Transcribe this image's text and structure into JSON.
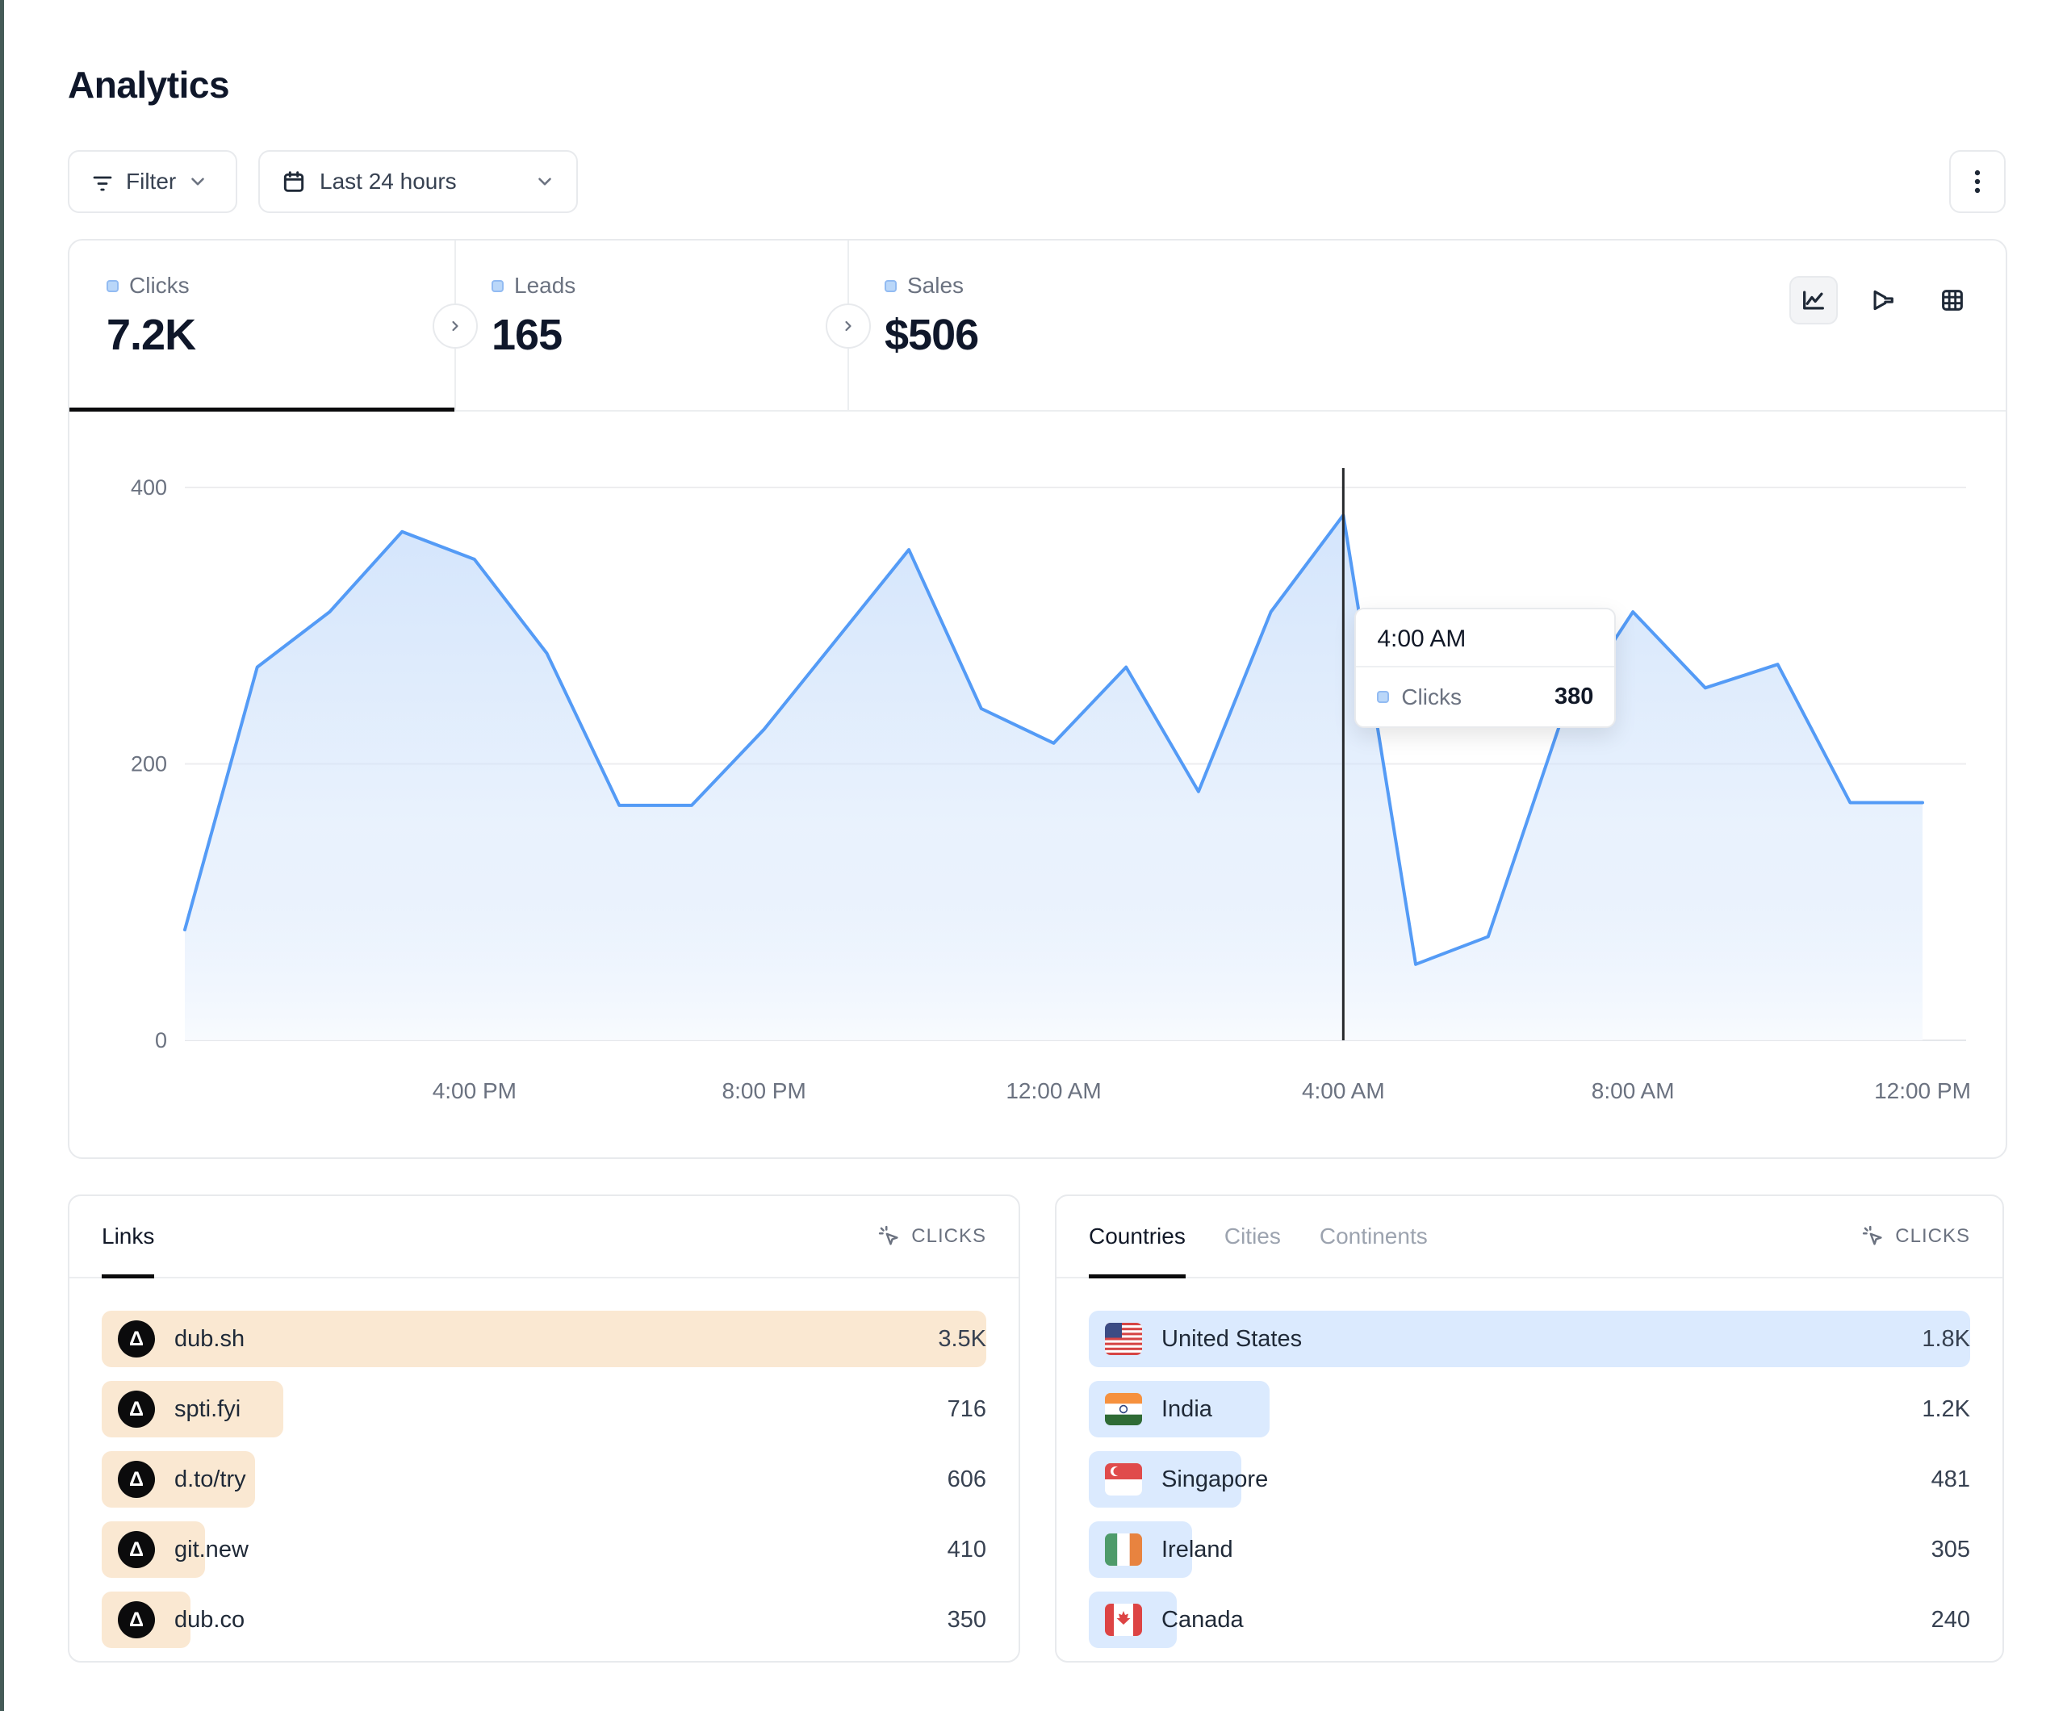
{
  "page": {
    "title": "Analytics"
  },
  "controls": {
    "filter_label": "Filter",
    "date_range_label": "Last 24 hours"
  },
  "stats": {
    "tabs": [
      {
        "label": "Clicks",
        "value": "7.2K",
        "active": true
      },
      {
        "label": "Leads",
        "value": "165",
        "active": false
      },
      {
        "label": "Sales",
        "value": "$506",
        "active": false
      }
    ]
  },
  "chart_data": {
    "type": "area",
    "series_name": "Clicks",
    "x": [
      "12:00 PM",
      "1:00 PM",
      "2:00 PM",
      "3:00 PM",
      "4:00 PM",
      "5:00 PM",
      "6:00 PM",
      "7:00 PM",
      "8:00 PM",
      "9:00 PM",
      "10:00 PM",
      "11:00 PM",
      "12:00 AM",
      "1:00 AM",
      "2:00 AM",
      "3:00 AM",
      "4:00 AM",
      "5:00 AM",
      "6:00 AM",
      "7:00 AM",
      "8:00 AM",
      "9:00 AM",
      "10:00 AM",
      "11:00 AM",
      "12:00 PM"
    ],
    "values": [
      80,
      270,
      310,
      368,
      348,
      280,
      170,
      170,
      225,
      290,
      355,
      240,
      215,
      270,
      180,
      310,
      380,
      55,
      75,
      230,
      310,
      255,
      272,
      172,
      172
    ],
    "ylim": [
      0,
      400
    ],
    "y_ticks": [
      0,
      200,
      400
    ],
    "x_tick_labels": [
      "4:00 PM",
      "8:00 PM",
      "12:00 AM",
      "4:00 AM",
      "8:00 AM",
      "12:00 PM"
    ],
    "x_tick_indices": [
      4,
      8,
      12,
      16,
      20,
      24
    ],
    "grid": true,
    "crosshair_index": 16,
    "line_color": "#549BF6",
    "area_top_color": "#CFE2FB",
    "area_bottom_color": "#F7FAFE"
  },
  "tooltip": {
    "time": "4:00 AM",
    "series": "Clicks",
    "value": "380"
  },
  "links_card": {
    "tab_label": "Links",
    "metric_header": "CLICKS",
    "bar_color": "#FAE8D2",
    "rows": [
      {
        "label": "dub.sh",
        "value": "3.5K",
        "bar_pct": 100
      },
      {
        "label": "spti.fyi",
        "value": "716",
        "bar_pct": 20.5
      },
      {
        "label": "d.to/try",
        "value": "606",
        "bar_pct": 17.3
      },
      {
        "label": "git.new",
        "value": "410",
        "bar_pct": 11.7
      },
      {
        "label": "dub.co",
        "value": "350",
        "bar_pct": 10
      }
    ]
  },
  "countries_card": {
    "tabs": [
      "Countries",
      "Cities",
      "Continents"
    ],
    "active_tab": "Countries",
    "metric_header": "CLICKS",
    "bar_color": "#DBEAFE",
    "rows": [
      {
        "label": "United States",
        "value": "1.8K",
        "bar_pct": 100,
        "flag": "us"
      },
      {
        "label": "India",
        "value": "1.2K",
        "bar_pct": 20.5,
        "flag": "in"
      },
      {
        "label": "Singapore",
        "value": "481",
        "bar_pct": 17.3,
        "flag": "sg"
      },
      {
        "label": "Ireland",
        "value": "305",
        "bar_pct": 11.7,
        "flag": "ie"
      },
      {
        "label": "Canada",
        "value": "240",
        "bar_pct": 10,
        "flag": "ca"
      }
    ]
  },
  "colors": {
    "accent_line": "#549BF6",
    "legend_square_fill": "#BAD7F9",
    "legend_square_border": "#92BBF2",
    "links_bar": "#FAE8D2",
    "countries_bar": "#DBEAFE",
    "crosshair": "#26282b",
    "edge_strip": "#455B58"
  }
}
